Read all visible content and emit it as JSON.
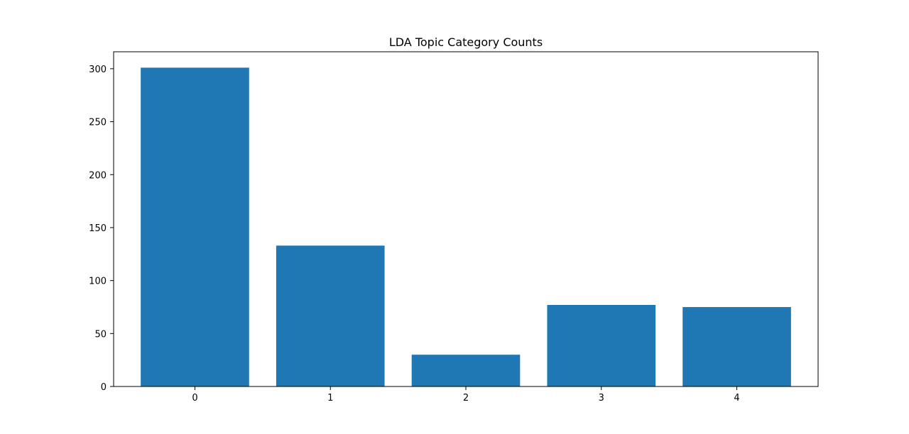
{
  "chart_data": {
    "type": "bar",
    "title": "LDA Topic Category Counts",
    "xlabel": "",
    "ylabel": "",
    "categories": [
      "0",
      "1",
      "2",
      "3",
      "4"
    ],
    "values": [
      301,
      133,
      30,
      77,
      75
    ],
    "ylim": [
      0,
      316
    ],
    "yticks": [
      0,
      50,
      100,
      150,
      200,
      250,
      300
    ],
    "bar_color": "#1f77b4",
    "grid": false,
    "legend": "none"
  }
}
